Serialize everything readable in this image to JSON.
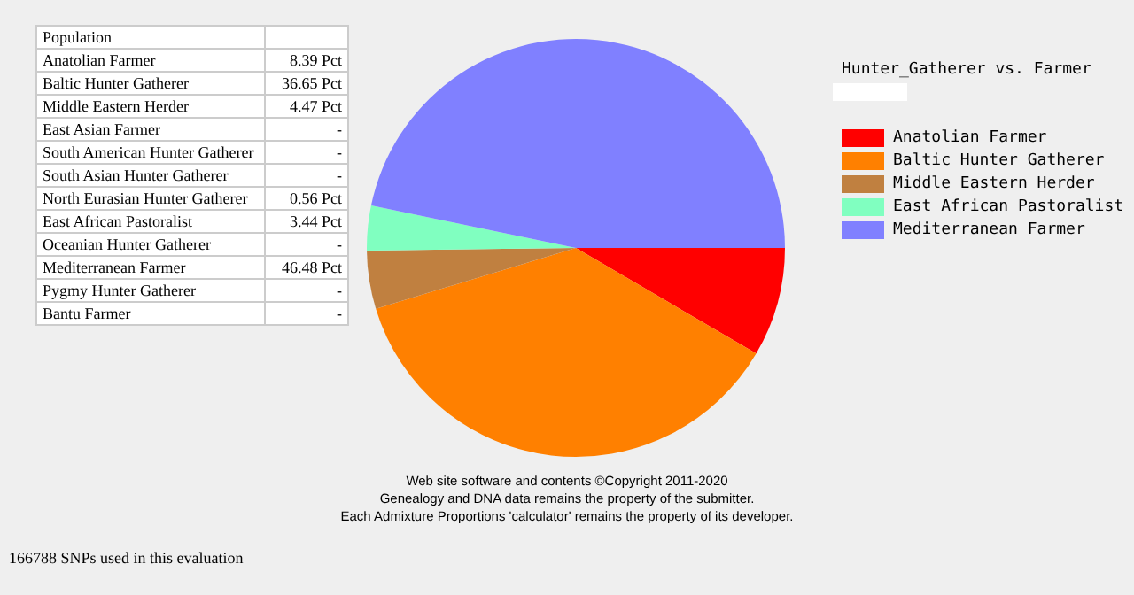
{
  "chart_data": [
    {
      "type": "other",
      "title": "Population",
      "categories": [
        "Anatolian Farmer",
        "Baltic Hunter Gatherer",
        "Middle Eastern Herder",
        "East Asian Farmer",
        "South American Hunter Gatherer",
        "South Asian Hunter Gatherer",
        "North Eurasian Hunter Gatherer",
        "East African Pastoralist",
        "Oceanian Hunter Gatherer",
        "Mediterranean Farmer",
        "Pygmy Hunter Gatherer",
        "Bantu Farmer"
      ],
      "value_labels": [
        "8.39 Pct",
        "36.65 Pct",
        "4.47 Pct",
        "-",
        "-",
        "-",
        "0.56 Pct",
        "3.44 Pct",
        "-",
        "46.48 Pct",
        "-",
        "-"
      ],
      "annotations": [
        "166788 SNPs used in this evaluation"
      ]
    },
    {
      "type": "pie",
      "title": "Hunter_Gatherer vs. Farmer",
      "categories": [
        "Anatolian Farmer",
        "Baltic Hunter Gatherer",
        "Middle Eastern Herder",
        "East African Pastoralist",
        "Mediterranean Farmer"
      ],
      "values": [
        8.39,
        36.65,
        4.47,
        3.44,
        46.48
      ],
      "colors": [
        "#ff0000",
        "#ff8000",
        "#c08040",
        "#80ffc0",
        "#8080ff"
      ],
      "legend": "right",
      "annotations": [
        "Web site software and contents ©Copyright 2011-2020",
        "Genealogy and DNA data remains the property of the submitter.",
        "Each Admixture Proportions 'calculator' remains the property of its developer."
      ]
    }
  ]
}
